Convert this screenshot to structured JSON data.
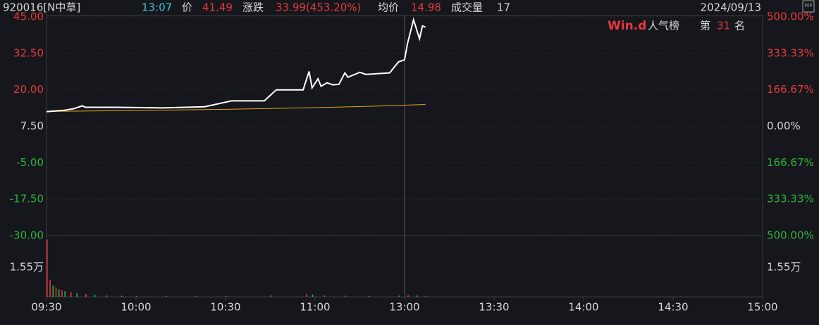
{
  "header": {
    "code": "920016[N中草]",
    "time": "13:07",
    "price_label": "价",
    "price": "41.49",
    "change_label": "涨跌",
    "change": "33.99(453.20%)",
    "avg_label": "均价",
    "avg": "14.98",
    "volume_label": "成交量",
    "volume": "17",
    "date": "2024/09/13",
    "icon": "WP",
    "rank_brand": "Win.d",
    "rank_title": "人气榜",
    "rank_prefix": "第",
    "rank": "31",
    "rank_suffix": "名"
  },
  "chart_data": [
    {
      "type": "line",
      "xlim": [
        0,
        240
      ],
      "xticks": [
        {
          "value": 0,
          "label": "09:30"
        },
        {
          "value": 30,
          "label": "10:00"
        },
        {
          "value": 60,
          "label": "10:30"
        },
        {
          "value": 90,
          "label": "11:00"
        },
        {
          "value": 120,
          "label": "13:00"
        },
        {
          "value": 150,
          "label": "13:30"
        },
        {
          "value": 180,
          "label": "14:00"
        },
        {
          "value": 210,
          "label": "14:30"
        },
        {
          "value": 240,
          "label": "15:00"
        }
      ],
      "ylim": [
        -30,
        45
      ],
      "yticks": [
        {
          "value": 45,
          "label": "45.00"
        },
        {
          "value": 32.5,
          "label": "32.50"
        },
        {
          "value": 20,
          "label": "20.00"
        },
        {
          "value": 7.5,
          "label": "7.50"
        },
        {
          "value": -5,
          "label": "-5.00"
        },
        {
          "value": -17.5,
          "label": "-17.50"
        },
        {
          "value": -30,
          "label": "-30.00"
        }
      ],
      "y2lim": [
        -500,
        500
      ],
      "y2ticks": [
        {
          "value": 500,
          "label": "500.00%"
        },
        {
          "value": 333.33,
          "label": "333.33%"
        },
        {
          "value": 166.67,
          "label": "166.67%"
        },
        {
          "value": 0,
          "label": "0.00%"
        },
        {
          "value": -166.67,
          "label": "166.67%"
        },
        {
          "value": -333.33,
          "label": "333.33%"
        },
        {
          "value": -500,
          "label": "500.00%"
        }
      ],
      "up_color": "#e8393c",
      "flat_color": "#d8d8d8",
      "down_color": "#2fb33c",
      "series": [
        {
          "color": "#ffffff",
          "x": [
            0,
            6,
            9,
            12,
            13,
            23,
            39,
            53,
            62,
            73,
            77,
            86,
            88,
            89,
            91,
            92,
            94,
            96,
            98,
            100,
            101,
            105,
            107,
            115,
            118,
            120,
            121,
            123,
            125,
            126,
            127
          ],
          "values": [
            12.5,
            13.0,
            13.5,
            14.5,
            14.0,
            14.0,
            13.8,
            14.2,
            16.2,
            16.2,
            20.0,
            20.0,
            26.3,
            20.7,
            23.8,
            21.2,
            22.4,
            21.7,
            21.9,
            25.8,
            24.3,
            26.0,
            25.3,
            25.8,
            29.6,
            30.3,
            35.9,
            44.0,
            37.5,
            41.9,
            41.49
          ]
        },
        {
          "color": "#e8a317",
          "x": [
            0,
            30,
            60,
            90,
            110,
            127
          ],
          "values": [
            12.6,
            12.9,
            13.3,
            13.9,
            14.4,
            14.98
          ]
        }
      ]
    },
    {
      "type": "bar",
      "xlim": [
        0,
        240
      ],
      "ylim": [
        0,
        32100
      ],
      "yticks": [
        {
          "value": 15500,
          "label": "1.55万"
        }
      ],
      "x": [
        0,
        1,
        2,
        3,
        4,
        5,
        6,
        8,
        10,
        13,
        16,
        20,
        25,
        30,
        40,
        50,
        60,
        75,
        87,
        89,
        93,
        100,
        108,
        118,
        121,
        124,
        127
      ],
      "values": [
        30000,
        9000,
        6000,
        5000,
        4000,
        3500,
        3000,
        2500,
        2000,
        1500,
        1200,
        800,
        600,
        500,
        500,
        400,
        600,
        900,
        1500,
        1200,
        800,
        700,
        500,
        700,
        1000,
        800,
        600
      ],
      "colors": [
        "#e8393c",
        "#e8393c",
        "#2fb33c",
        "#e8393c",
        "#2fb33c",
        "#e8393c",
        "#2fb33c",
        "#e8393c",
        "#2fb33c",
        "#e8393c",
        "#2fb33c",
        "#e8393c",
        "#2fb33c",
        "#e8393c",
        "#2fb33c",
        "#e8393c",
        "#2fb33c",
        "#e8393c",
        "#e8393c",
        "#2fb33c",
        "#e8393c",
        "#e8393c",
        "#2fb33c",
        "#e8393c",
        "#e8393c",
        "#2fb33c",
        "#e8393c"
      ]
    }
  ]
}
